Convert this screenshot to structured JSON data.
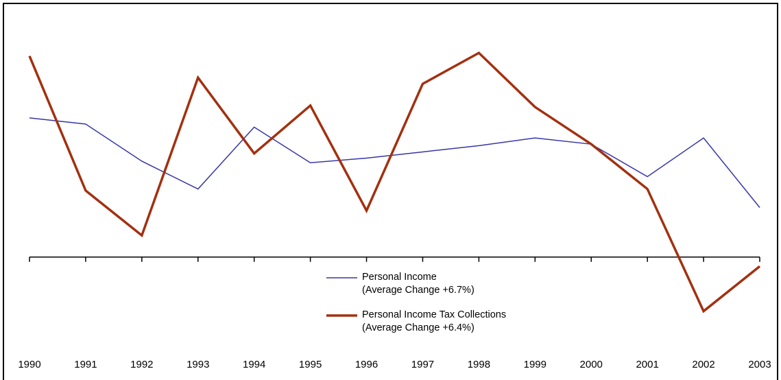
{
  "chart_data": {
    "type": "line",
    "categories": [
      "1990",
      "1991",
      "1992",
      "1993",
      "1994",
      "1995",
      "1996",
      "1997",
      "1998",
      "1999",
      "2000",
      "2001",
      "2002",
      "2003"
    ],
    "series": [
      {
        "name": "Personal Income\n(Average Change +6.7%)",
        "color": "#3535a8",
        "width": 1.5,
        "values": [
          9.0,
          8.6,
          6.2,
          4.4,
          8.4,
          6.1,
          6.4,
          6.8,
          7.2,
          7.7,
          7.3,
          5.2,
          7.7,
          3.2
        ]
      },
      {
        "name": "Personal Income Tax Collections\n(Average Change +6.4%)",
        "color": "#a3300f",
        "width": 3.5,
        "values": [
          13.0,
          4.3,
          1.4,
          11.6,
          6.7,
          9.8,
          3.0,
          11.2,
          13.2,
          9.7,
          7.3,
          4.4,
          -3.5,
          -0.6
        ]
      }
    ],
    "ylim": [
      -5,
      16.4
    ]
  }
}
